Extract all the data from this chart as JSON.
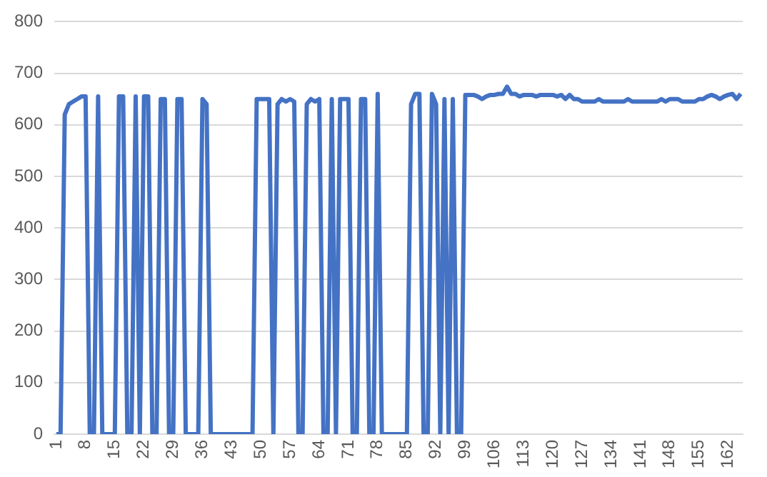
{
  "chart_data": {
    "type": "line",
    "categories": [
      "1",
      null,
      null,
      null,
      null,
      null,
      null,
      "8",
      null,
      null,
      null,
      null,
      null,
      null,
      "15",
      null,
      null,
      null,
      null,
      null,
      null,
      "22",
      null,
      null,
      null,
      null,
      null,
      null,
      "29",
      null,
      null,
      null,
      null,
      null,
      null,
      "36",
      null,
      null,
      null,
      null,
      null,
      null,
      "43",
      null,
      null,
      null,
      null,
      null,
      null,
      "50",
      null,
      null,
      null,
      null,
      null,
      null,
      "57",
      null,
      null,
      null,
      null,
      null,
      null,
      "64",
      null,
      null,
      null,
      null,
      null,
      null,
      "71",
      null,
      null,
      null,
      null,
      null,
      null,
      "78",
      null,
      null,
      null,
      null,
      null,
      null,
      "85",
      null,
      null,
      null,
      null,
      null,
      null,
      "92",
      null,
      null,
      null,
      null,
      null,
      null,
      "99",
      null,
      null,
      null,
      null,
      null,
      null,
      "106",
      null,
      null,
      null,
      null,
      null,
      null,
      "113",
      null,
      null,
      null,
      null,
      null,
      null,
      "120",
      null,
      null,
      null,
      null,
      null,
      null,
      "127",
      null,
      null,
      null,
      null,
      null,
      null,
      "134",
      null,
      null,
      null,
      null,
      null,
      null,
      "141",
      null,
      null,
      null,
      null,
      null,
      null,
      "148",
      null,
      null,
      null,
      null,
      null,
      null,
      "155",
      null,
      null,
      null,
      null,
      null,
      null,
      "162",
      null,
      null,
      null
    ],
    "values": [
      0,
      0,
      620,
      640,
      645,
      650,
      655,
      655,
      0,
      0,
      655,
      0,
      0,
      0,
      0,
      655,
      655,
      0,
      0,
      655,
      0,
      655,
      655,
      0,
      0,
      650,
      650,
      0,
      0,
      650,
      650,
      0,
      0,
      0,
      0,
      650,
      640,
      0,
      0,
      0,
      0,
      0,
      0,
      0,
      0,
      0,
      0,
      0,
      650,
      650,
      650,
      650,
      0,
      640,
      650,
      645,
      650,
      645,
      0,
      0,
      640,
      650,
      645,
      650,
      0,
      0,
      650,
      0,
      650,
      650,
      650,
      0,
      0,
      650,
      650,
      0,
      0,
      660,
      0,
      0,
      0,
      0,
      0,
      0,
      0,
      640,
      660,
      660,
      0,
      0,
      660,
      640,
      0,
      650,
      0,
      650,
      0,
      0,
      658,
      658,
      658,
      655,
      650,
      655,
      658,
      658,
      660,
      660,
      674,
      660,
      660,
      655,
      658,
      658,
      658,
      655,
      658,
      658,
      658,
      658,
      655,
      658,
      650,
      658,
      650,
      650,
      645,
      645,
      645,
      645,
      650,
      645,
      645,
      645,
      645,
      645,
      645,
      650,
      645,
      645,
      645,
      645,
      645,
      645,
      645,
      650,
      645,
      650,
      650,
      650,
      645,
      645,
      645,
      645,
      650,
      650,
      655,
      658,
      655,
      650,
      655,
      658,
      660,
      650,
      660
    ],
    "color": "#4472c4",
    "ylim": [
      0,
      800
    ],
    "yticks": [
      0,
      100,
      200,
      300,
      400,
      500,
      600,
      700,
      800
    ],
    "grid": "y"
  }
}
